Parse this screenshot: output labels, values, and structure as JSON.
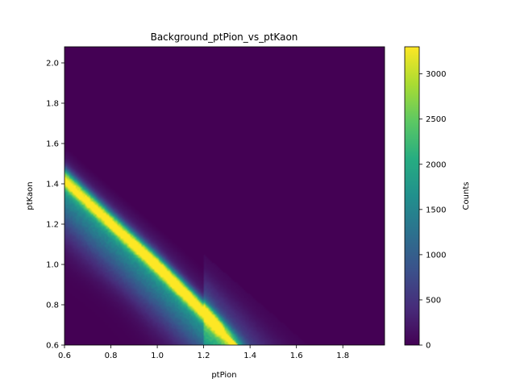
{
  "chart_data": {
    "type": "heatmap",
    "title": "Background_ptPion_vs_ptKaon",
    "xlabel": "ptPion",
    "ylabel": "ptKaon",
    "xlim": [
      0.6,
      1.98
    ],
    "ylim": [
      0.6,
      2.08
    ],
    "xticks": [
      "0.6",
      "0.8",
      "1.0",
      "1.2",
      "1.4",
      "1.6",
      "1.8"
    ],
    "yticks": [
      "0.6",
      "0.8",
      "1.0",
      "1.2",
      "1.4",
      "1.6",
      "1.8",
      "2.0"
    ],
    "colorbar": {
      "label": "Counts",
      "range": [
        0,
        3300
      ],
      "ticks": [
        "0",
        "500",
        "1000",
        "1500",
        "2000",
        "2500",
        "3000"
      ],
      "colormap": "viridis"
    },
    "ridge": {
      "description_points": [
        [
          0.6,
          1.43
        ],
        [
          1.0,
          1.0
        ],
        [
          1.35,
          0.6
        ]
      ],
      "peak_counts": 3250
    },
    "legend": "none",
    "grid": false
  }
}
